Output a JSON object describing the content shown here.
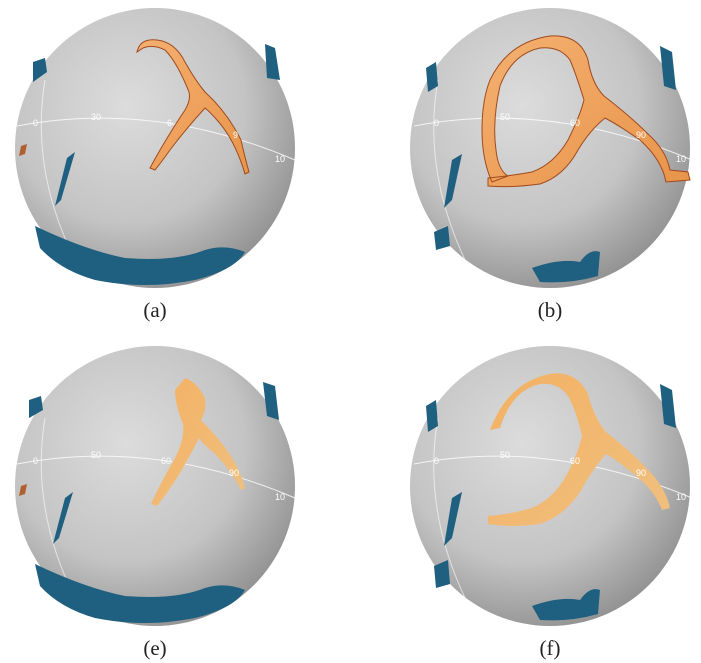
{
  "figure": {
    "panels": [
      {
        "id": "a",
        "caption": "(a)",
        "ticks": [
          "0",
          "30",
          "6",
          "9",
          "10"
        ]
      },
      {
        "id": "b",
        "caption": "(b)",
        "ticks": [
          "0",
          "50",
          "60",
          "90",
          "10"
        ]
      },
      {
        "id": "e",
        "caption": "(e)",
        "ticks": [
          "0",
          "50",
          "60",
          "90",
          "10"
        ]
      },
      {
        "id": "f",
        "caption": "(f)",
        "ticks": [
          "0",
          "50",
          "60",
          "90",
          "10"
        ]
      }
    ]
  },
  "colors": {
    "sphere": "#c8c8c8",
    "orange": "#f2a55c",
    "orange_edge": "#a04a1e",
    "blue": "#1f5f80"
  }
}
